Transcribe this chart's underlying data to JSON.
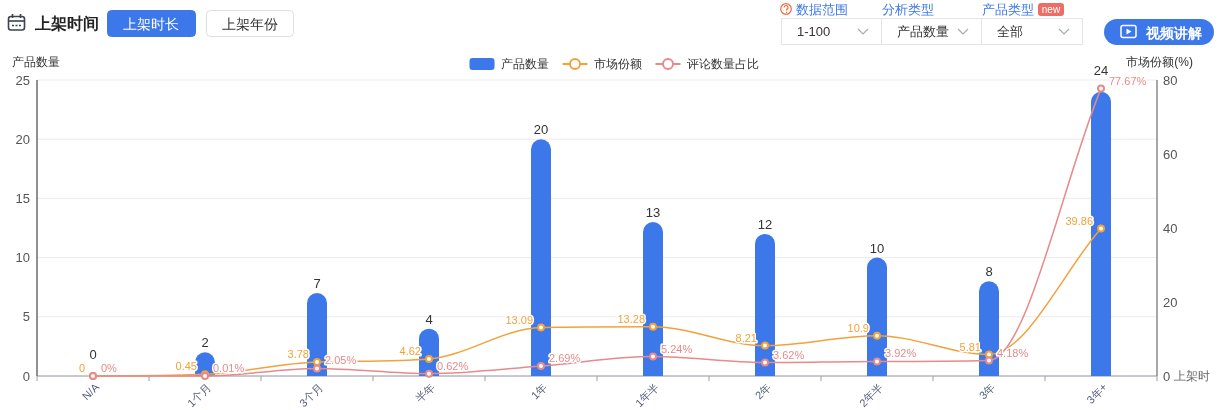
{
  "chart_data": {
    "type": "bar",
    "title": "上架时间",
    "annotations": [
      "上架时长",
      "上架年份",
      "数据范围",
      "分析类型",
      "产品类型",
      "new",
      "1-100",
      "产品数量",
      "全部",
      "视频讲解"
    ],
    "ylabel": "产品数量",
    "y2label": "市场份额(%)",
    "xlabel": "上架时",
    "categories": [
      "N/A",
      "1个月",
      "3个月",
      "半年",
      "1年",
      "1年半",
      "2年",
      "2年半",
      "3年",
      "3年+"
    ],
    "series": [
      {
        "name": "产品数量",
        "color": "#3d78ea",
        "values": [
          0,
          2,
          7,
          4,
          20,
          13,
          12,
          10,
          8,
          24
        ],
        "value_labels": [
          "0",
          "2",
          "7",
          "4",
          "20",
          "13",
          "12",
          "10",
          "8",
          "24"
        ]
      },
      {
        "name": "市场份额",
        "type": "line",
        "axis": "y2",
        "color": "#f2a23a",
        "values": [
          0,
          0.45,
          3.78,
          4.62,
          13.09,
          13.28,
          8.21,
          10.9,
          5.81,
          39.86
        ],
        "value_labels": [
          "0",
          "0.45",
          "3.78",
          "4.62",
          "13.09",
          "13.28",
          "8.21",
          "10.9",
          "5.81",
          "39.86"
        ]
      },
      {
        "name": "评论数量占比",
        "type": "line",
        "axis": "y2",
        "color": "#e88a8a",
        "values": [
          0,
          0.01,
          2.05,
          0.62,
          2.69,
          5.24,
          3.62,
          3.92,
          4.18,
          77.67
        ],
        "value_labels": [
          "0%",
          "0.01%",
          "2.05%",
          "0.62%",
          "2.69%",
          "5.24%",
          "3.62%",
          "3.92%",
          "4.18%",
          "77.67%"
        ]
      }
    ],
    "ylim": [
      0,
      25
    ],
    "yticks": [
      0,
      5,
      10,
      15,
      20,
      25
    ],
    "y2lim": [
      0,
      80
    ],
    "y2ticks": [
      0,
      20,
      40,
      60,
      80
    ],
    "grid": "y",
    "legend": "top",
    "marker": "circle"
  }
}
